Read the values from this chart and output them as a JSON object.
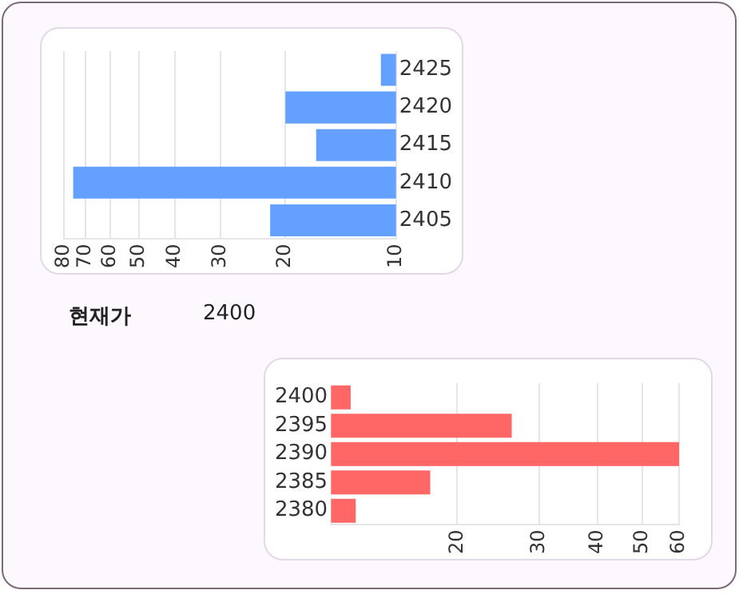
{
  "chart_data": [
    {
      "type": "bar",
      "orientation": "horizontal",
      "categories": [
        "2425",
        "2420",
        "2415",
        "2410",
        "2405"
      ],
      "values": [
        11,
        20,
        16.5,
        75.5,
        22
      ],
      "color": "#64a0ff",
      "log": "x",
      "xlim": [
        80,
        10
      ],
      "xticks": [
        10,
        20,
        30,
        40,
        50,
        60,
        70,
        80
      ],
      "grid": "x",
      "legend": false
    },
    {
      "type": "other",
      "title": "현재가",
      "annotations": [
        "2400"
      ]
    },
    {
      "type": "bar",
      "orientation": "horizontal",
      "categories": [
        "2400",
        "2395",
        "2390",
        "2385",
        "2380"
      ],
      "values": [
        11.8,
        26.2,
        60,
        17.5,
        12.1
      ],
      "color": "#ff6666",
      "log": "x",
      "xlim": [
        10.7,
        60
      ],
      "xticks": [
        20,
        30,
        40,
        50,
        60
      ],
      "grid": "x",
      "legend": false
    }
  ]
}
